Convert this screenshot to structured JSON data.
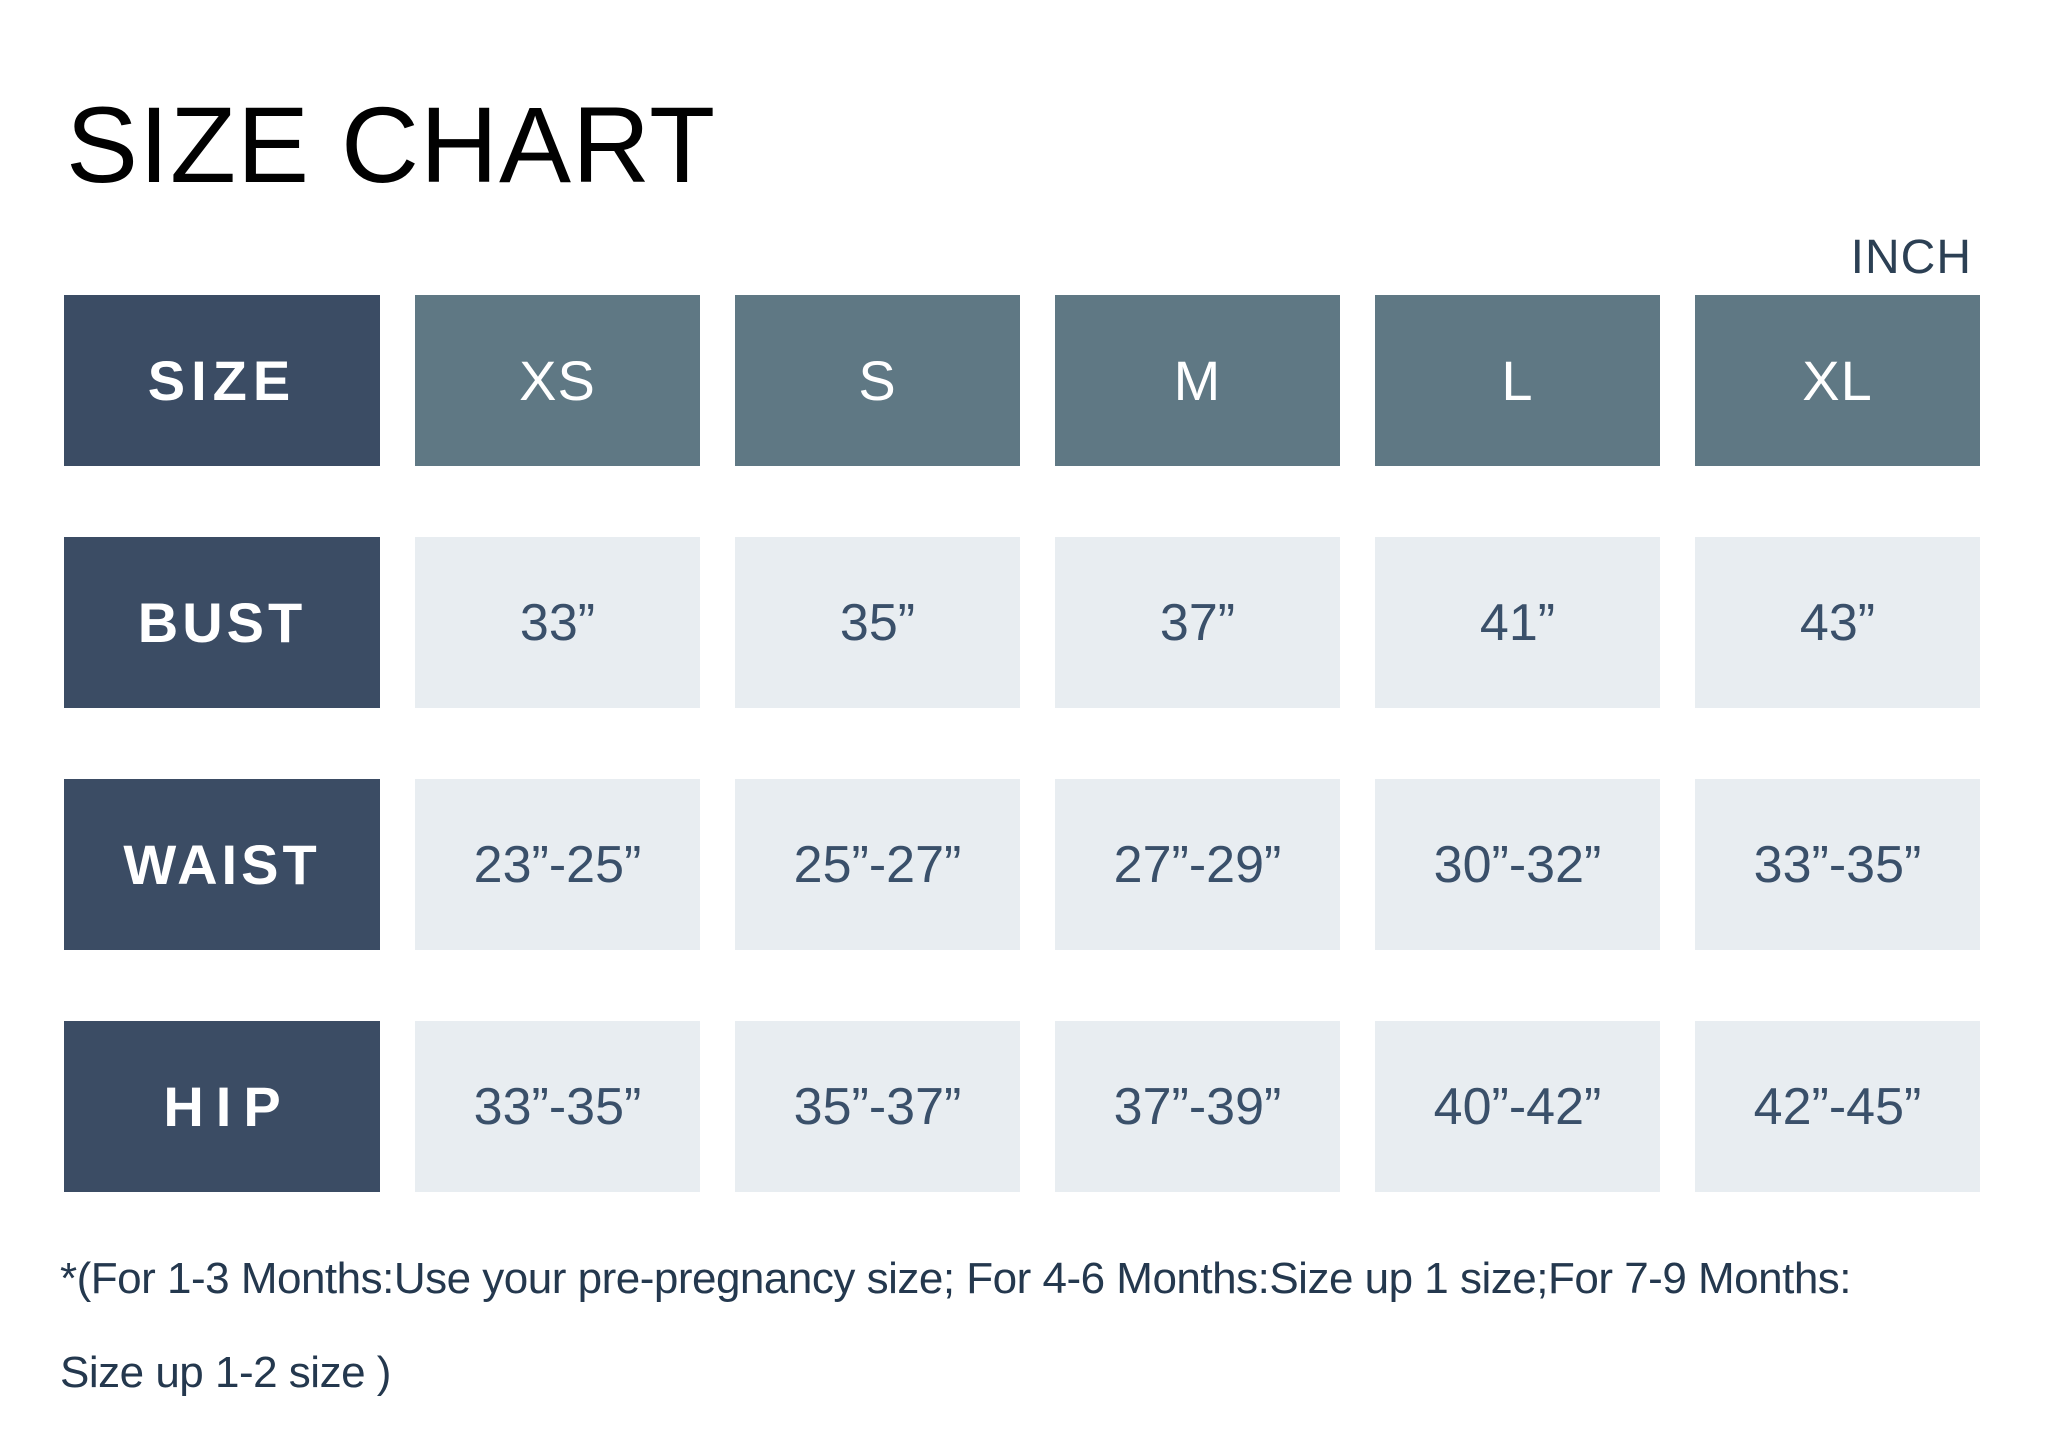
{
  "title": "SIZE CHART",
  "unit_label": "INCH",
  "table": {
    "corner_label": "SIZE",
    "sizes": [
      "XS",
      "S",
      "M",
      "L",
      "XL"
    ],
    "rows": [
      {
        "label": "BUST",
        "values": [
          "33”",
          "35”",
          "37”",
          "41”",
          "43”"
        ]
      },
      {
        "label": "WAIST",
        "values": [
          "23”-25”",
          "25”-27”",
          "27”-29”",
          "30”-32”",
          "33”-35”"
        ]
      },
      {
        "label": "HIP",
        "values": [
          "33”-35”",
          "35”-37”",
          "37”-39”",
          "40”-42”",
          "42”-45”"
        ]
      }
    ]
  },
  "footnote": {
    "line1": "*(For 1-3 Months:Use your pre-pregnancy size; For 4-6 Months:Size up 1 size;For 7-9 Months:",
    "line2": "Size up 1-2 size )"
  },
  "colors": {
    "row_label_bg": "#3b4c64",
    "size_header_bg": "#5f7884",
    "value_cell_bg": "#e8edf1",
    "value_text": "#3a506a",
    "title_text": "#010101",
    "unit_text": "#2c4054",
    "footnote_text": "#24384e",
    "background": "#ffffff"
  }
}
